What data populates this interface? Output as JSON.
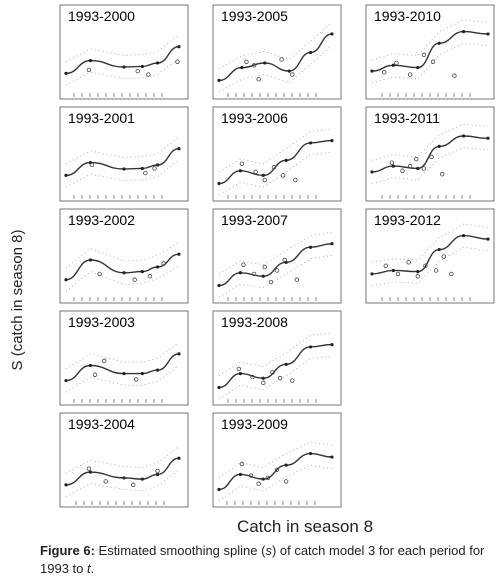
{
  "chart_data": {
    "type": "line",
    "ylabel": "S (catch in season 8)",
    "xlabel": "Catch in season 8",
    "panels": [
      {
        "title": "1993-2000",
        "x": [
          0,
          1.6,
          3.8,
          5.0,
          6.0,
          7.4
        ],
        "y": [
          1.0,
          2.1,
          1.55,
          1.6,
          1.9,
          3.3
        ],
        "points": [
          [
            1.5,
            1.3
          ],
          [
            4.7,
            1.2
          ],
          [
            5.4,
            0.9
          ],
          [
            7.3,
            2.0
          ]
        ]
      },
      {
        "title": "1993-2005",
        "x": [
          0,
          1.5,
          3.0,
          4.6,
          6.0,
          7.4
        ],
        "y": [
          0.4,
          1.5,
          1.9,
          1.2,
          2.8,
          4.4
        ],
        "points": [
          [
            1.8,
            2.0
          ],
          [
            2.3,
            1.7
          ],
          [
            2.6,
            0.5
          ],
          [
            4.1,
            2.2
          ],
          [
            4.8,
            0.9
          ]
        ]
      },
      {
        "title": "1993-2010",
        "x": [
          0,
          1.4,
          3.0,
          4.4,
          6.0,
          7.6
        ],
        "y": [
          1.2,
          1.7,
          1.5,
          3.6,
          4.6,
          4.4
        ],
        "points": [
          [
            0.8,
            1.1
          ],
          [
            1.6,
            1.9
          ],
          [
            2.5,
            0.9
          ],
          [
            3.4,
            2.6
          ],
          [
            4.0,
            2.0
          ],
          [
            5.4,
            0.8
          ]
        ]
      },
      {
        "title": "1993-2001",
        "x": [
          0,
          1.6,
          3.8,
          5.0,
          6.0,
          7.4
        ],
        "y": [
          1.0,
          2.1,
          1.55,
          1.6,
          1.9,
          3.3
        ],
        "points": [
          [
            1.7,
            1.9
          ],
          [
            5.2,
            1.2
          ],
          [
            5.8,
            1.6
          ]
        ]
      },
      {
        "title": "1993-2006",
        "x": [
          0,
          1.4,
          2.9,
          4.4,
          6.0,
          7.4
        ],
        "y": [
          0.3,
          1.4,
          1.0,
          2.3,
          3.8,
          4.0
        ],
        "points": [
          [
            1.5,
            2.0
          ],
          [
            2.4,
            1.3
          ],
          [
            3.0,
            0.6
          ],
          [
            3.6,
            1.7
          ],
          [
            4.2,
            1.0
          ],
          [
            5.0,
            0.6
          ]
        ]
      },
      {
        "title": "1993-2011",
        "x": [
          0,
          1.4,
          3.0,
          4.4,
          6.0,
          7.6
        ],
        "y": [
          1.3,
          1.8,
          1.6,
          3.5,
          4.4,
          4.2
        ],
        "points": [
          [
            1.3,
            2.1
          ],
          [
            2.0,
            1.4
          ],
          [
            2.5,
            1.8
          ],
          [
            2.9,
            2.4
          ],
          [
            3.4,
            1.6
          ],
          [
            3.9,
            2.6
          ],
          [
            4.6,
            1.1
          ]
        ]
      },
      {
        "title": "1993-2002",
        "x": [
          0,
          1.6,
          3.8,
          5.0,
          6.0,
          7.4
        ],
        "y": [
          0.8,
          2.5,
          1.4,
          1.5,
          1.9,
          3.0
        ],
        "points": [
          [
            2.2,
            1.3
          ],
          [
            4.5,
            0.8
          ],
          [
            5.5,
            1.1
          ],
          [
            6.4,
            2.2
          ]
        ]
      },
      {
        "title": "1993-2007",
        "x": [
          0,
          1.4,
          2.9,
          4.4,
          6.0,
          7.4
        ],
        "y": [
          0.3,
          1.4,
          1.1,
          2.3,
          3.6,
          3.9
        ],
        "points": [
          [
            1.6,
            2.1
          ],
          [
            2.3,
            1.3
          ],
          [
            3.0,
            1.9
          ],
          [
            3.4,
            0.6
          ],
          [
            3.8,
            1.6
          ],
          [
            4.3,
            2.5
          ],
          [
            5.1,
            0.8
          ]
        ]
      },
      {
        "title": "1993-2012",
        "x": [
          0,
          1.4,
          3.0,
          4.4,
          6.0,
          7.6
        ],
        "y": [
          1.3,
          1.6,
          1.5,
          3.4,
          4.6,
          4.3
        ],
        "points": [
          [
            0.9,
            2.0
          ],
          [
            1.7,
            1.3
          ],
          [
            2.4,
            2.3
          ],
          [
            3.0,
            1.1
          ],
          [
            3.5,
            2.0
          ],
          [
            4.2,
            1.6
          ],
          [
            4.7,
            2.8
          ],
          [
            5.2,
            1.3
          ]
        ]
      },
      {
        "title": "1993-2003",
        "x": [
          0,
          1.6,
          3.8,
          5.0,
          6.0,
          7.4
        ],
        "y": [
          0.9,
          2.2,
          1.5,
          1.5,
          1.8,
          3.2
        ],
        "points": [
          [
            1.9,
            1.4
          ],
          [
            2.5,
            2.6
          ],
          [
            4.6,
            1.0
          ]
        ]
      },
      {
        "title": "1993-2008",
        "x": [
          0,
          1.4,
          2.9,
          4.4,
          6.0,
          7.4
        ],
        "y": [
          0.3,
          1.5,
          1.1,
          2.3,
          3.8,
          4.0
        ],
        "points": [
          [
            1.3,
            1.9
          ],
          [
            2.2,
            1.2
          ],
          [
            2.9,
            0.7
          ],
          [
            3.5,
            1.6
          ],
          [
            4.0,
            1.1
          ],
          [
            4.8,
            0.9
          ]
        ]
      },
      {
        "title": "1993-2004",
        "x": [
          0,
          1.6,
          3.8,
          5.0,
          6.0,
          7.4
        ],
        "y": [
          0.7,
          1.8,
          1.3,
          1.2,
          1.6,
          3.0
        ],
        "points": [
          [
            1.5,
            2.1
          ],
          [
            2.6,
            1.0
          ],
          [
            4.4,
            0.7
          ],
          [
            6.0,
            1.9
          ]
        ]
      },
      {
        "title": "1993-2009",
        "x": [
          0,
          1.4,
          2.9,
          4.4,
          6.0,
          7.4
        ],
        "y": [
          0.3,
          1.6,
          1.2,
          2.4,
          3.4,
          3.1
        ],
        "points": [
          [
            1.5,
            2.5
          ],
          [
            2.1,
            1.5
          ],
          [
            2.6,
            0.8
          ],
          [
            3.2,
            1.3
          ],
          [
            3.8,
            2.0
          ],
          [
            4.4,
            1.0
          ]
        ]
      }
    ]
  },
  "caption": {
    "label": "Figure 6:",
    "text": " Estimated smoothing spline (",
    "italic_s": "s",
    "text2": ") of catch model 3 for each period for 1993 to ",
    "italic_t": "t",
    "text3": "."
  }
}
